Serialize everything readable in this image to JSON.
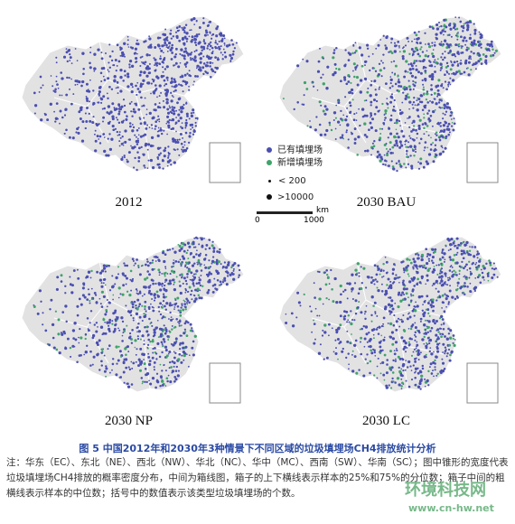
{
  "panels": [
    {
      "title": "2012",
      "new_sites": false
    },
    {
      "title": "2030 BAU",
      "new_sites": true
    },
    {
      "title": "2030 NP",
      "new_sites": true
    },
    {
      "title": "2030 LC",
      "new_sites": true
    }
  ],
  "legend": {
    "existing": "已有填埋场",
    "new": "新增填埋场",
    "small": "< 200",
    "large": ">10000"
  },
  "scalebar": {
    "unit": "km",
    "start": "0",
    "end": "1000"
  },
  "colors": {
    "land": "#e3e2e3",
    "existing_site": "#4a4fb0",
    "new_site": "#3fa36a",
    "border": "#ffffff"
  },
  "caption": {
    "title": "图 5 中国2012年和2030年3种情景下不同区域的垃圾填埋场CH4排放统计分析",
    "note": "注：华东（EC）、东北（NE）、西北（NW）、华北（NC）、华中（MC）、西南（SW）、华南（SC）；图中锥形的宽度代表垃圾填埋场CH4排放的概率密度分布，中间为箱线图，箱子的上下横线表示样本的25%和75%的分位数；箱子中间的粗横线表示样本的中位数；括号中的数值表示该类型垃圾填埋场的个数。"
  },
  "watermark": {
    "text": "环境科技网",
    "url": "www.cn-hw.net"
  }
}
